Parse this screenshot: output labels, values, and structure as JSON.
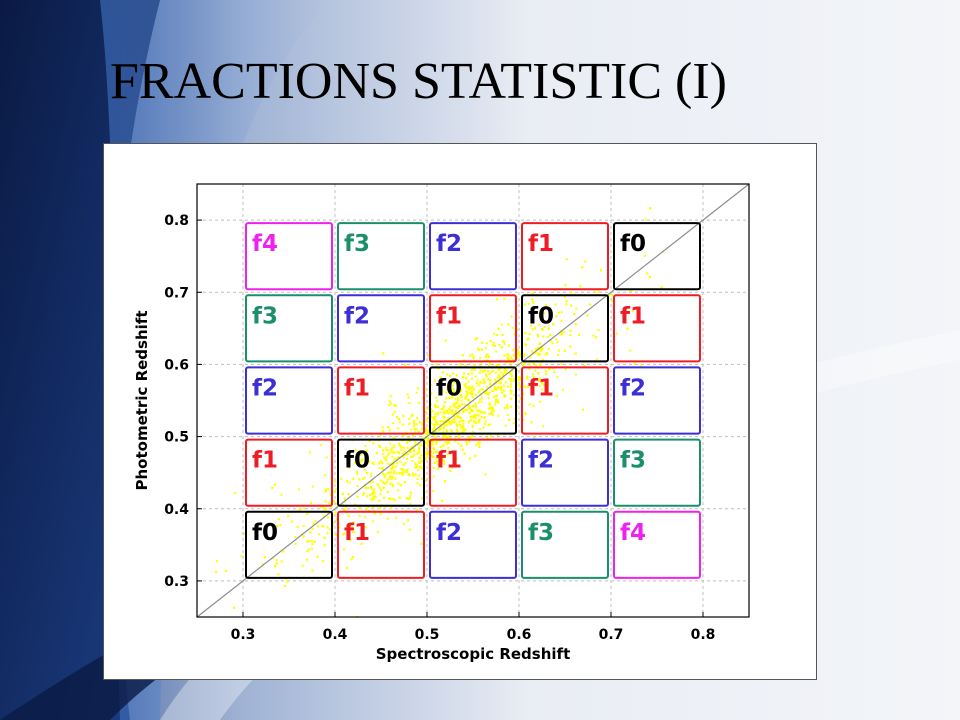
{
  "slide": {
    "title": "FRACTIONS STATISTIC (I)",
    "colors": {
      "background_light": "#eef1f6",
      "background_dark": "#0b1e4a",
      "accent_blue": "#3f6fbf"
    }
  },
  "chart_data": {
    "type": "scatter",
    "title": "",
    "xlabel": "Spectroscopic Redshift",
    "ylabel": "Photometric Redshift",
    "xlim": [
      0.25,
      0.85
    ],
    "ylim": [
      0.25,
      0.85
    ],
    "xticks": [
      0.3,
      0.4,
      0.5,
      0.6,
      0.7,
      0.8
    ],
    "yticks": [
      0.3,
      0.4,
      0.5,
      0.6,
      0.7,
      0.8
    ],
    "grid": true,
    "reference_line": "y = x",
    "point_color": "#ffff00",
    "bins": [
      0.3,
      0.4,
      0.5,
      0.6,
      0.7,
      0.8
    ],
    "label_colors": {
      "f0": "#000000",
      "f1": "#ee1c24",
      "f2": "#3d2fd6",
      "f3": "#1b8f6a",
      "f4": "#ee22ee"
    },
    "cells": [
      [
        "f0",
        "f1",
        "f2",
        "f3",
        "f4"
      ],
      [
        "f1",
        "f0",
        "f1",
        "f2",
        "f3"
      ],
      [
        "f2",
        "f1",
        "f0",
        "f1",
        "f2"
      ],
      [
        "f3",
        "f2",
        "f1",
        "f0",
        "f1"
      ],
      [
        "f4",
        "f3",
        "f2",
        "f1",
        "f0"
      ]
    ],
    "scatter_distribution": {
      "description": "dense cloud of spectroscopic vs photometric redshift points along y = x",
      "n_points": 2600,
      "x_center": 0.52,
      "x_spread": 0.07,
      "scatter_about_line": 0.035,
      "outlier_fraction": 0.08
    }
  }
}
